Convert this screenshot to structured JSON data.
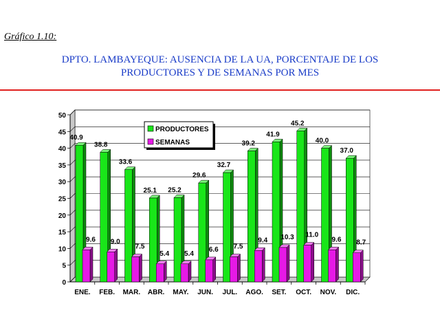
{
  "figure_label": "Gráfico 1.10:",
  "title_line1": "DPTO. LAMBAYEQUE: AUSENCIA DE LA UA, PORCENTAJE DE LOS",
  "title_line2": "PRODUCTORES Y DE SEMANAS POR MES",
  "colors": {
    "title": "#1a3cc8",
    "rule": "#e0201e",
    "productores": "#19e619",
    "semanas": "#e619e6"
  },
  "chart_data": {
    "type": "bar",
    "categories": [
      "ENE.",
      "FEB.",
      "MAR.",
      "ABR.",
      "MAY.",
      "JUN.",
      "JUL.",
      "AGO.",
      "SET.",
      "OCT.",
      "NOV.",
      "DIC."
    ],
    "series": [
      {
        "name": "PRODUCTORES",
        "values": [
          40.9,
          38.8,
          33.6,
          25.1,
          25.2,
          29.6,
          32.7,
          39.2,
          41.9,
          45.2,
          40.0,
          37.0
        ]
      },
      {
        "name": "SEMANAS",
        "values": [
          9.6,
          9.0,
          7.5,
          5.4,
          5.4,
          6.6,
          7.5,
          9.4,
          10.3,
          11.0,
          9.6,
          8.7
        ]
      }
    ],
    "value_labels": {
      "PRODUCTORES": [
        "40.9",
        "38.8",
        "33.6",
        "25.1",
        "25.2",
        "29.6",
        "32.7",
        "39.2",
        "41.9",
        "45.2",
        "40.0",
        "37.0"
      ],
      "SEMANAS": [
        "9.6",
        "9.0",
        "7.5",
        "5.4",
        "5.4",
        "6.6",
        "7.5",
        "9.4",
        "10.3",
        "11.0",
        "9.6",
        "8.7"
      ]
    },
    "yticks": [
      "0",
      "5",
      "10",
      "15",
      "20",
      "25",
      "30",
      "35",
      "40",
      "45",
      "50"
    ],
    "ylim": [
      0,
      50
    ],
    "grid": true,
    "legend_position": "top-center",
    "bar_style": "3d"
  }
}
